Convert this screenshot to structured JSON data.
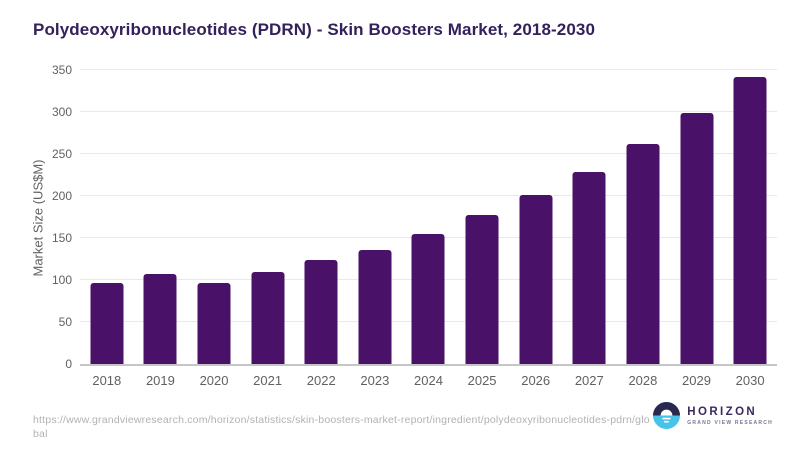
{
  "chart_data": {
    "type": "bar",
    "title": "Polydeoxyribonucleotides (PDRN) - Skin Boosters Market, 2018-2030",
    "categories": [
      "2018",
      "2019",
      "2020",
      "2021",
      "2022",
      "2023",
      "2024",
      "2025",
      "2026",
      "2027",
      "2028",
      "2029",
      "2030"
    ],
    "values": [
      97,
      107,
      97,
      110,
      124,
      136,
      155,
      177,
      201,
      229,
      262,
      299,
      342
    ],
    "xlabel": "",
    "ylabel": "Market Size (US$M)",
    "ylim": [
      0,
      350
    ],
    "yticks": [
      0,
      50,
      100,
      150,
      200,
      250,
      300,
      350
    ],
    "grid": "horizontal",
    "legend": "none",
    "bar_color": "#4A1168"
  },
  "colors": {
    "title": "#33215B",
    "bar": "#4A1168",
    "axis_text": "#616161",
    "gridline": "#E9E9E9",
    "baseline": "#C6C6C6",
    "footer_text": "#B2B2B2",
    "logo_dark": "#2B2850",
    "logo_blue": "#47C2E9",
    "logo_text": "#3A2A5E"
  },
  "footer": {
    "source_url_line1": "https://www.grandviewresearch.com/horizon/statistics/skin-boosters-market-report/ingredient/polydeoxyribonucleotides-pdrn/glo",
    "source_url_line2": "bal"
  },
  "logo": {
    "brand": "HORIZON",
    "tagline": "GRAND VIEW RESEARCH"
  }
}
